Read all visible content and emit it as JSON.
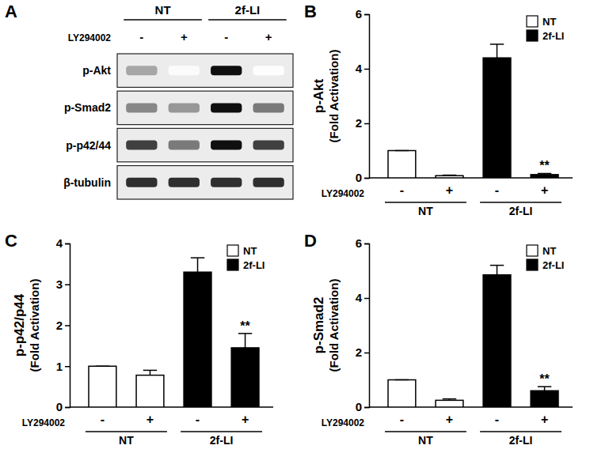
{
  "chart_data": [
    {
      "type": "blot",
      "title": "A",
      "treatment": "LY294002",
      "groups": [
        {
          "name": "NT",
          "lanes": [
            "-",
            "+"
          ]
        },
        {
          "name": "2f-LI",
          "lanes": [
            "-",
            "+"
          ]
        }
      ],
      "rows": [
        "p-Akt",
        "p-Smad2",
        "p-p42/44",
        "β-tubulin"
      ],
      "cells": [
        [
          0.45,
          0.03,
          0.95,
          0.02
        ],
        [
          0.55,
          0.5,
          0.95,
          0.6
        ],
        [
          0.8,
          0.6,
          0.95,
          0.8
        ],
        [
          0.85,
          0.85,
          0.85,
          0.85
        ]
      ]
    },
    {
      "type": "bar",
      "title": "B",
      "ylabel": [
        "p-Akt",
        "(Fold Activation)"
      ],
      "xlabel": "LY294002",
      "categories": [
        "-",
        "+",
        "-",
        "+"
      ],
      "series": [
        {
          "name": "NT",
          "color": "#ffffff",
          "values": [
            1,
            0.08,
            null,
            null
          ],
          "errors": [
            0,
            0.02,
            null,
            null
          ]
        },
        {
          "name": "2f-LI",
          "color": "#000000",
          "values": [
            null,
            null,
            4.4,
            0.12
          ],
          "errors": [
            null,
            null,
            0.5,
            0.04
          ]
        }
      ],
      "annotations": [
        {
          "text": "**",
          "series": 1,
          "index": 3
        }
      ],
      "ylim": [
        0,
        6
      ],
      "yticks": [
        0,
        2,
        4,
        6
      ],
      "legend": "upper right"
    },
    {
      "type": "bar",
      "title": "C",
      "ylabel": [
        "p-p42/p44",
        "(Fold Activation)"
      ],
      "xlabel": "LY294002",
      "categories": [
        "-",
        "+",
        "-",
        "+"
      ],
      "series": [
        {
          "name": "NT",
          "color": "#ffffff",
          "values": [
            1,
            0.78,
            null,
            null
          ],
          "errors": [
            0,
            0.12,
            null,
            null
          ]
        },
        {
          "name": "2f-LI",
          "color": "#000000",
          "values": [
            null,
            null,
            3.3,
            1.45
          ],
          "errors": [
            null,
            null,
            0.35,
            0.35
          ]
        }
      ],
      "annotations": [
        {
          "text": "**",
          "series": 1,
          "index": 3
        }
      ],
      "ylim": [
        0,
        4
      ],
      "yticks": [
        0,
        1,
        2,
        3,
        4
      ],
      "legend": "upper right"
    },
    {
      "type": "bar",
      "title": "D",
      "ylabel": [
        "p-Smad2",
        "(Fold Activation)"
      ],
      "xlabel": "LY294002",
      "categories": [
        "-",
        "+",
        "-",
        "+"
      ],
      "series": [
        {
          "name": "NT",
          "color": "#ffffff",
          "values": [
            1,
            0.25,
            null,
            null
          ],
          "errors": [
            0,
            0.05,
            null,
            null
          ]
        },
        {
          "name": "2f-LI",
          "color": "#000000",
          "values": [
            null,
            null,
            4.85,
            0.6
          ],
          "errors": [
            null,
            null,
            0.35,
            0.15
          ]
        }
      ],
      "annotations": [
        {
          "text": "**",
          "series": 1,
          "index": 3
        }
      ],
      "ylim": [
        0,
        6
      ],
      "yticks": [
        0,
        2,
        4,
        6
      ],
      "legend": "upper right"
    }
  ]
}
